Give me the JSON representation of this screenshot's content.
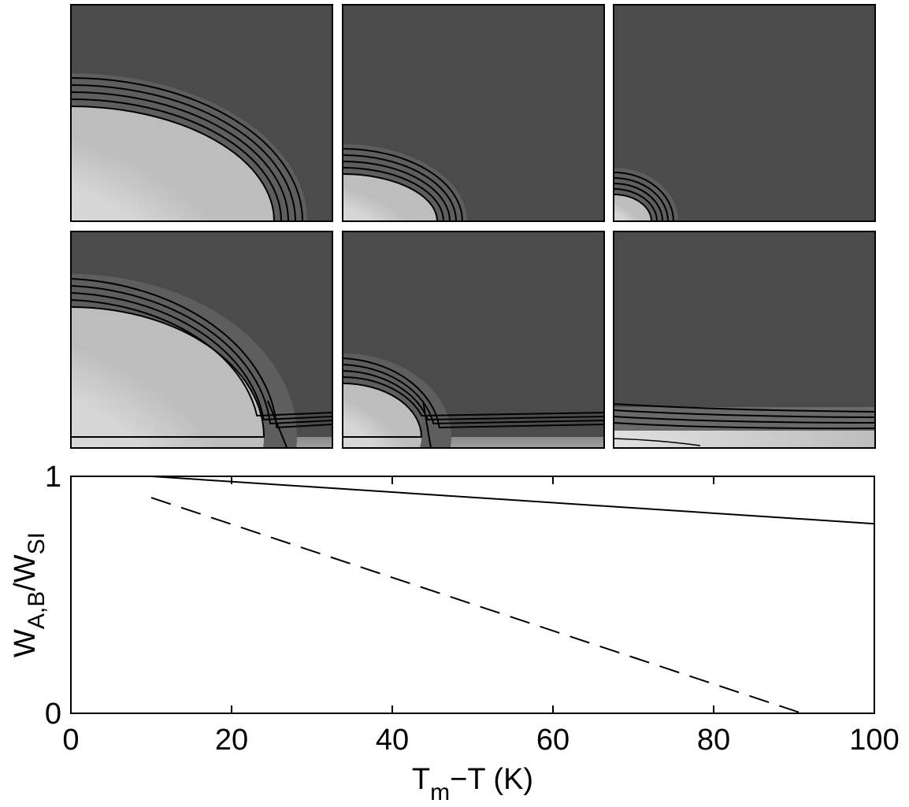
{
  "colors": {
    "panel_background": "#4b4b4b",
    "grain_light": "#dddddd",
    "contour_line": "#000000",
    "plot_line": "#000000",
    "axis": "#000000"
  },
  "chart_data": [
    {
      "type": "heatmap",
      "layout": "2x3 grid of contour maps",
      "title": "",
      "xlabel": "",
      "ylabel": "",
      "tick_labels": "none",
      "contour_levels": 5,
      "panels": [
        {
          "row": 1,
          "col": 1
        },
        {
          "row": 1,
          "col": 2
        },
        {
          "row": 1,
          "col": 3
        },
        {
          "row": 2,
          "col": 1
        },
        {
          "row": 2,
          "col": 2
        },
        {
          "row": 2,
          "col": 3
        }
      ]
    },
    {
      "type": "line",
      "title": "",
      "xlabel": {
        "main": "T",
        "sub": "m",
        "rest": "−T (K)"
      },
      "ylabel": {
        "main": "W",
        "sub1": "A,B",
        "mid": "/W",
        "sub2": "SI"
      },
      "xlim": [
        0,
        100
      ],
      "ylim": [
        0,
        1
      ],
      "xticks": [
        0,
        20,
        40,
        60,
        80,
        100
      ],
      "yticks": [
        0,
        1
      ],
      "xtick_labels": [
        "0",
        "20",
        "40",
        "60",
        "80",
        "100"
      ],
      "ytick_labels": [
        "0",
        "1"
      ],
      "grid": false,
      "legend": "none",
      "series": [
        {
          "style": "solid",
          "x": [
            10,
            100
          ],
          "y": [
            1.0,
            0.8
          ]
        },
        {
          "style": "dashed",
          "x": [
            10,
            91
          ],
          "y": [
            0.91,
            0.0
          ]
        }
      ]
    }
  ]
}
